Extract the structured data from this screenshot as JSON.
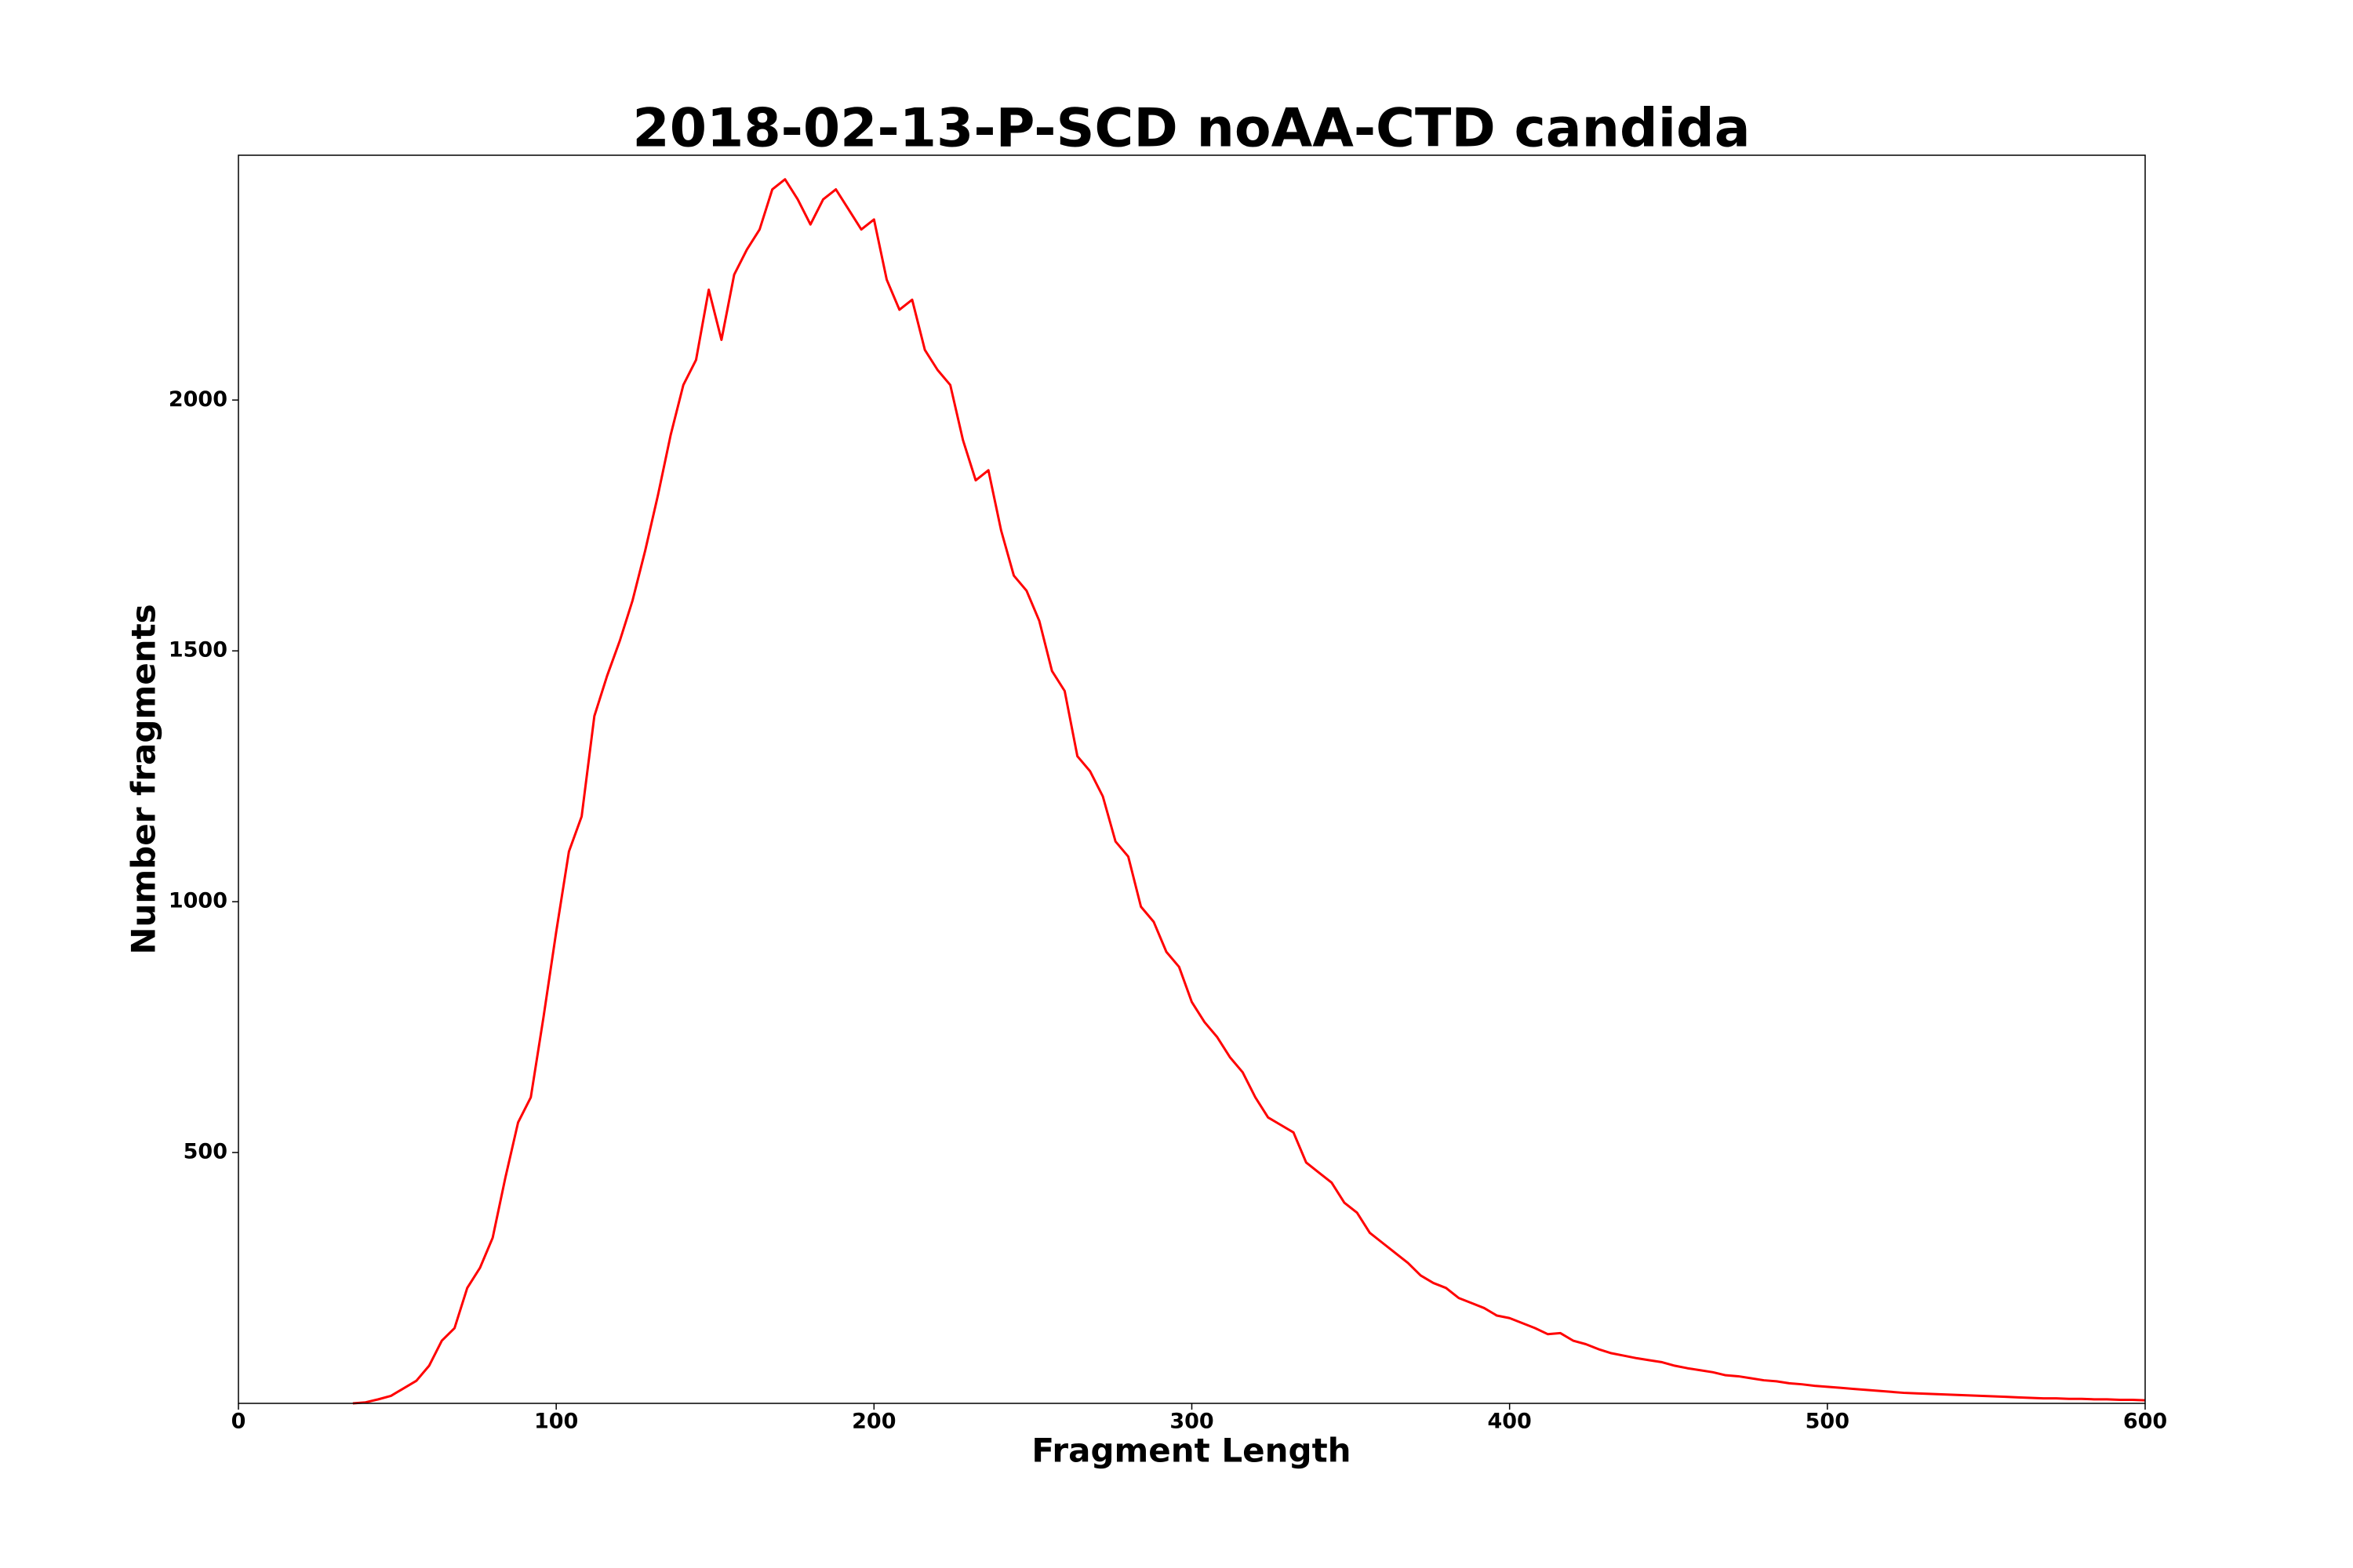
{
  "chart_data": {
    "type": "line",
    "title": "2018-02-13-P-SCD noAA-CTD candida",
    "xlabel": "Fragment Length",
    "ylabel": "Number fragments",
    "xlim": [
      0,
      600
    ],
    "ylim": [
      0,
      2488
    ],
    "xticks": [
      0,
      100,
      200,
      300,
      400,
      500,
      600
    ],
    "yticks": [
      500,
      1000,
      1500,
      2000
    ],
    "x": [
      36,
      40,
      44,
      48,
      52,
      56,
      60,
      64,
      68,
      72,
      76,
      80,
      84,
      88,
      92,
      96,
      100,
      104,
      108,
      112,
      116,
      120,
      124,
      128,
      132,
      136,
      140,
      144,
      148,
      152,
      156,
      160,
      164,
      168,
      172,
      176,
      180,
      184,
      188,
      192,
      196,
      200,
      204,
      208,
      212,
      216,
      220,
      224,
      228,
      232,
      236,
      240,
      244,
      248,
      252,
      256,
      260,
      264,
      268,
      272,
      276,
      280,
      284,
      288,
      292,
      296,
      300,
      304,
      308,
      312,
      316,
      320,
      324,
      328,
      332,
      336,
      340,
      344,
      348,
      352,
      356,
      360,
      364,
      368,
      372,
      376,
      380,
      384,
      388,
      392,
      396,
      400,
      404,
      408,
      412,
      416,
      420,
      424,
      428,
      432,
      436,
      440,
      444,
      448,
      452,
      456,
      460,
      464,
      468,
      472,
      476,
      480,
      484,
      488,
      492,
      496,
      500,
      504,
      508,
      512,
      516,
      520,
      524,
      528,
      532,
      536,
      540,
      544,
      548,
      552,
      556,
      560,
      564,
      568,
      572,
      576,
      580,
      584,
      588,
      592,
      596,
      600
    ],
    "series": [
      {
        "name": "fragments",
        "color": "#ff0000",
        "values": [
          0,
          2,
          8,
          15,
          30,
          45,
          75,
          125,
          150,
          230,
          270,
          330,
          450,
          560,
          610,
          770,
          940,
          1100,
          1170,
          1370,
          1450,
          1520,
          1600,
          1700,
          1810,
          1930,
          2030,
          2080,
          2220,
          2120,
          2250,
          2300,
          2340,
          2420,
          2440,
          2400,
          2350,
          2400,
          2420,
          2380,
          2340,
          2360,
          2240,
          2180,
          2200,
          2100,
          2060,
          2030,
          1920,
          1840,
          1860,
          1740,
          1650,
          1620,
          1560,
          1460,
          1420,
          1290,
          1260,
          1210,
          1120,
          1090,
          990,
          960,
          900,
          870,
          800,
          760,
          730,
          690,
          660,
          610,
          570,
          555,
          540,
          480,
          460,
          440,
          400,
          380,
          340,
          320,
          300,
          280,
          255,
          240,
          230,
          210,
          200,
          190,
          175,
          170,
          160,
          150,
          138,
          140,
          125,
          118,
          108,
          100,
          95,
          90,
          86,
          82,
          75,
          70,
          66,
          62,
          56,
          54,
          50,
          46,
          44,
          40,
          38,
          35,
          33,
          31,
          29,
          27,
          25,
          23,
          21,
          20,
          19,
          18,
          17,
          16,
          15,
          14,
          13,
          12,
          11,
          10,
          10,
          9,
          9,
          8,
          8,
          7,
          7,
          6
        ]
      }
    ]
  }
}
